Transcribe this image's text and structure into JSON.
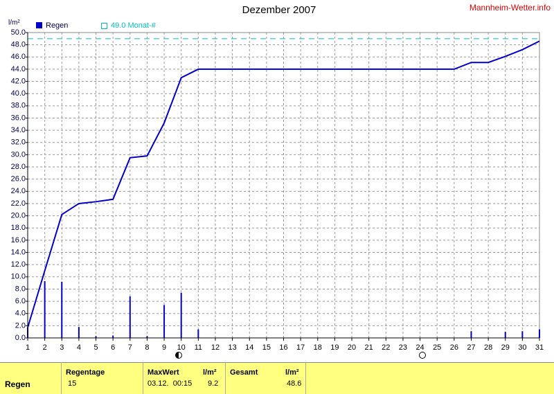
{
  "chart_data": {
    "type": "bar",
    "title": "Dezember 2007",
    "source": "Mannheim-Wetter.info",
    "y_label": "l/m²",
    "x": [
      1,
      2,
      3,
      4,
      5,
      6,
      7,
      8,
      9,
      10,
      11,
      12,
      13,
      14,
      15,
      16,
      17,
      18,
      19,
      20,
      21,
      22,
      23,
      24,
      25,
      26,
      27,
      28,
      29,
      30,
      31
    ],
    "series": [
      {
        "name": "Regen",
        "color": "#0000cc",
        "style": "bar",
        "values": [
          1.7,
          9.3,
          9.2,
          1.8,
          0.3,
          0.4,
          6.8,
          0.3,
          5.4,
          7.4,
          1.4,
          0,
          0,
          0,
          0,
          0,
          0,
          0,
          0,
          0,
          0,
          0,
          0,
          0,
          0,
          0,
          1.1,
          0,
          1.0,
          1.1,
          1.4
        ]
      },
      {
        "color": "#0000cc",
        "style": "line",
        "values": [
          1.7,
          11.0,
          20.2,
          22.0,
          22.3,
          22.7,
          29.5,
          29.8,
          35.2,
          42.6,
          44.0,
          44.0,
          44.0,
          44.0,
          44.0,
          44.0,
          44.0,
          44.0,
          44.0,
          44.0,
          44.0,
          44.0,
          44.0,
          44.0,
          44.0,
          44.0,
          45.1,
          45.1,
          46.1,
          47.2,
          48.6
        ]
      }
    ],
    "reference_line": {
      "value": 49,
      "label": "49.0 Monat-#",
      "color": "#00c0c0"
    },
    "xlim": [
      1,
      31
    ],
    "xticks": [
      1,
      2,
      3,
      4,
      5,
      6,
      7,
      8,
      9,
      10,
      11,
      12,
      13,
      14,
      15,
      16,
      17,
      18,
      19,
      20,
      21,
      22,
      23,
      24,
      25,
      26,
      27,
      28,
      29,
      30,
      31
    ],
    "ylim": [
      0,
      50
    ],
    "yticks": [
      {
        "value": 0,
        "label": "0.0"
      },
      {
        "value": 2,
        "label": "2.0"
      },
      {
        "value": 4,
        "label": "4.0"
      },
      {
        "value": 6,
        "label": "6.0"
      },
      {
        "value": 8,
        "label": "8.0"
      },
      {
        "value": 10,
        "label": "10.0"
      },
      {
        "value": 12,
        "label": "12.0"
      },
      {
        "value": 14,
        "label": "14.0"
      },
      {
        "value": 16,
        "label": "16.0"
      },
      {
        "value": 18,
        "label": "18.0"
      },
      {
        "value": 20,
        "label": "20.0"
      },
      {
        "value": 22,
        "label": "22.0"
      },
      {
        "value": 24,
        "label": "24.0"
      },
      {
        "value": 26,
        "label": "26.0"
      },
      {
        "value": 28,
        "label": "28.0"
      },
      {
        "value": 30,
        "label": "30.0"
      },
      {
        "value": 32,
        "label": "32.0"
      },
      {
        "value": 34,
        "label": "34.0"
      },
      {
        "value": 36,
        "label": "36.0"
      },
      {
        "value": 38,
        "label": "38.0"
      },
      {
        "value": 40,
        "label": "40.0"
      },
      {
        "value": 42,
        "label": "42.0"
      },
      {
        "value": 44,
        "label": "44.0"
      },
      {
        "value": 46,
        "label": "46.0"
      },
      {
        "value": 48,
        "label": "48.0"
      },
      {
        "value": 50,
        "label": "50.0"
      }
    ],
    "grid": true
  },
  "table": {
    "headers": [
      "Regentage",
      "MaxWert",
      "l/m²",
      "Gesamt",
      "l/m²"
    ],
    "rows": [
      [
        "Regen",
        "15",
        "03.12.  00:15",
        9.2,
        48.6
      ]
    ]
  }
}
